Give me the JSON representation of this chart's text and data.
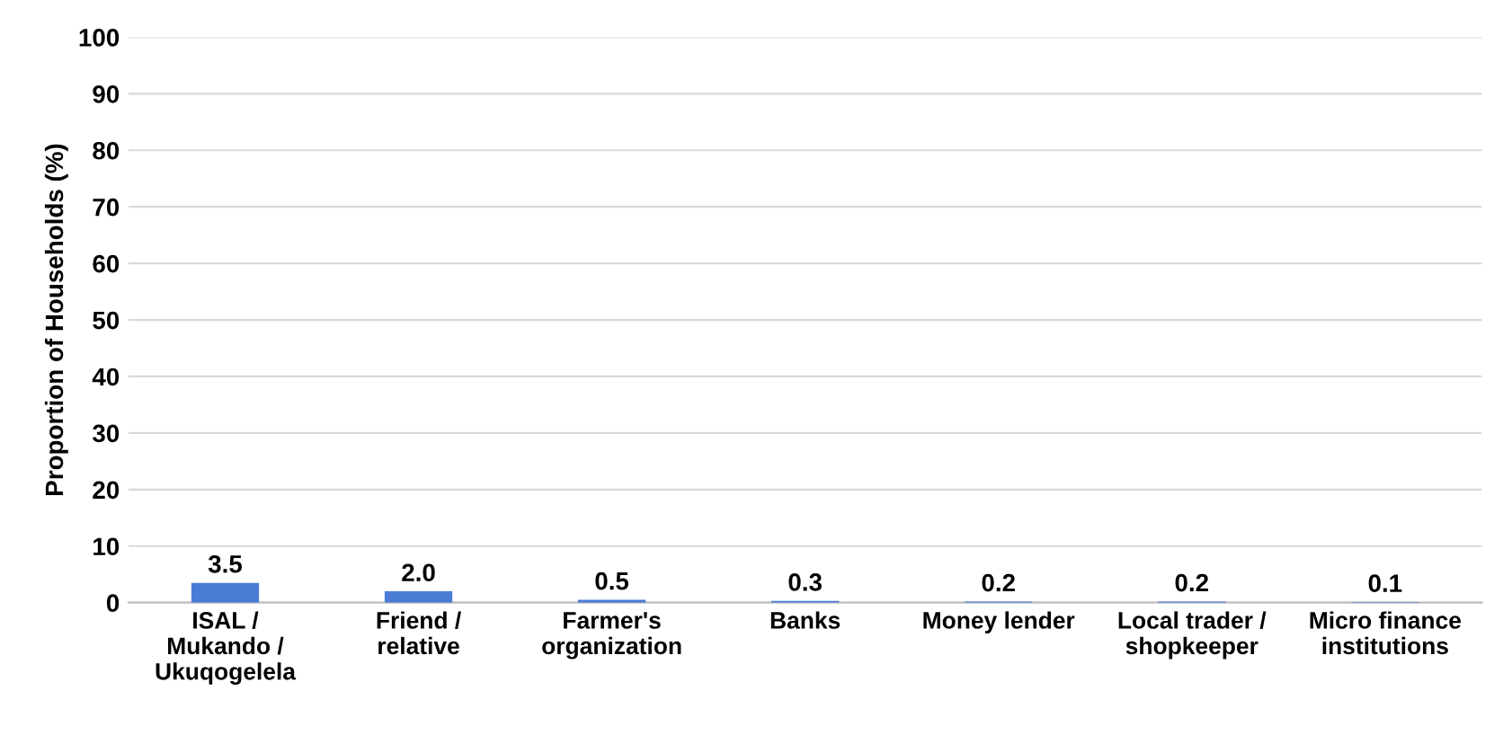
{
  "chart_data": {
    "type": "bar",
    "categories": [
      "ISAL /\nMukando /\nUkuqogelela",
      "Friend /\nrelative",
      "Farmer's\norganization",
      "Banks",
      "Money lender",
      "Local trader /\nshopkeeper",
      "Micro finance\ninstitutions"
    ],
    "values": [
      3.5,
      2.0,
      0.5,
      0.3,
      0.2,
      0.2,
      0.1
    ],
    "value_labels": [
      "3.5",
      "2.0",
      "0.5",
      "0.3",
      "0.2",
      "0.2",
      "0.1"
    ],
    "color": "#4a7bd5",
    "ylabel": "Proportion of Households (%)",
    "ylim": [
      0,
      100
    ],
    "yticks": [
      0,
      10,
      20,
      30,
      40,
      50,
      60,
      70,
      80,
      90,
      100
    ],
    "grid": "y",
    "legend": false
  }
}
